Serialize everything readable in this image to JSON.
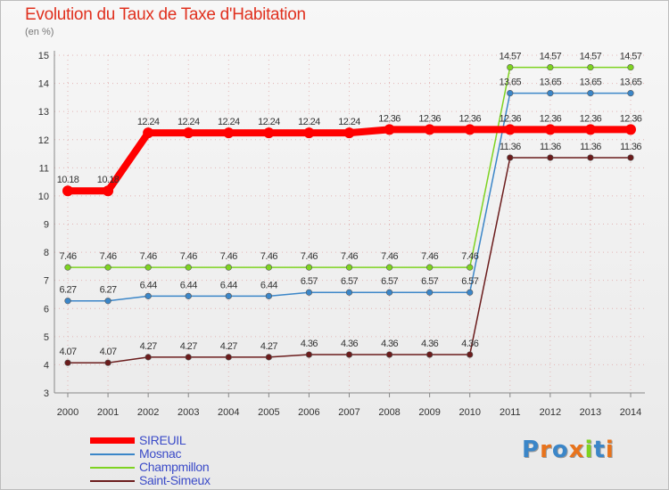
{
  "title": "Evolution du Taux de Taxe d'Habitation",
  "subtitle": "(en %)",
  "logo": "Proxiti",
  "colors": {
    "grid": "#e2b4b4",
    "axis": "#888888",
    "tick_text": "#333333",
    "value_text": "#333333",
    "title": "#e0301e",
    "legend_text": "#3b4bc8"
  },
  "chart_data": {
    "type": "line",
    "x": [
      "2000",
      "2001",
      "2002",
      "2003",
      "2004",
      "2005",
      "2006",
      "2007",
      "2008",
      "2009",
      "2010",
      "2011",
      "2012",
      "2013",
      "2014"
    ],
    "ylim": [
      3,
      15
    ],
    "yticks": [
      "3",
      "4",
      "5",
      "6",
      "7",
      "8",
      "9",
      "10",
      "11",
      "12",
      "13",
      "14",
      "15"
    ],
    "grid": true,
    "legend_position": "bottom-left",
    "series": [
      {
        "name": "SIREUIL",
        "color": "#ff0000",
        "values": [
          10.18,
          10.18,
          12.24,
          12.24,
          12.24,
          12.24,
          12.24,
          12.24,
          12.36,
          12.36,
          12.36,
          12.36,
          12.36,
          12.36,
          12.36
        ],
        "labels": [
          "10.18",
          "10.18",
          "12.24",
          "12.24",
          "12.24",
          "12.24",
          "12.24",
          "12.24",
          "12.36",
          "12.36",
          "12.36",
          "12.36",
          "12.36",
          "12.36",
          "12.36"
        ]
      },
      {
        "name": "Mosnac",
        "color": "#3b86c8",
        "values": [
          6.27,
          6.27,
          6.44,
          6.44,
          6.44,
          6.44,
          6.57,
          6.57,
          6.57,
          6.57,
          6.57,
          13.65,
          13.65,
          13.65,
          13.65
        ],
        "labels": [
          "6.27",
          "6.27",
          "6.44",
          "6.44",
          "6.44",
          "6.44",
          "6.57",
          "6.57",
          "6.57",
          "6.57",
          "6.57",
          "13.65",
          "13.65",
          "13.65",
          "13.65"
        ]
      },
      {
        "name": "Champmillon",
        "color": "#7ed321",
        "values": [
          7.46,
          7.46,
          7.46,
          7.46,
          7.46,
          7.46,
          7.46,
          7.46,
          7.46,
          7.46,
          7.46,
          14.57,
          14.57,
          14.57,
          14.57
        ],
        "labels": [
          "7.46",
          "7.46",
          "7.46",
          "7.46",
          "7.46",
          "7.46",
          "7.46",
          "7.46",
          "7.46",
          "7.46",
          "7.46",
          "14.57",
          "14.57",
          "14.57",
          "14.57"
        ]
      },
      {
        "name": "Saint-Simeux",
        "color": "#6b1c1c",
        "values": [
          4.07,
          4.07,
          4.27,
          4.27,
          4.27,
          4.27,
          4.36,
          4.36,
          4.36,
          4.36,
          4.36,
          11.36,
          11.36,
          11.36,
          11.36
        ],
        "labels": [
          "4.07",
          "4.07",
          "4.27",
          "4.27",
          "4.27",
          "4.27",
          "4.36",
          "4.36",
          "4.36",
          "4.36",
          "4.36",
          "11.36",
          "11.36",
          "11.36",
          "11.36"
        ]
      }
    ]
  }
}
